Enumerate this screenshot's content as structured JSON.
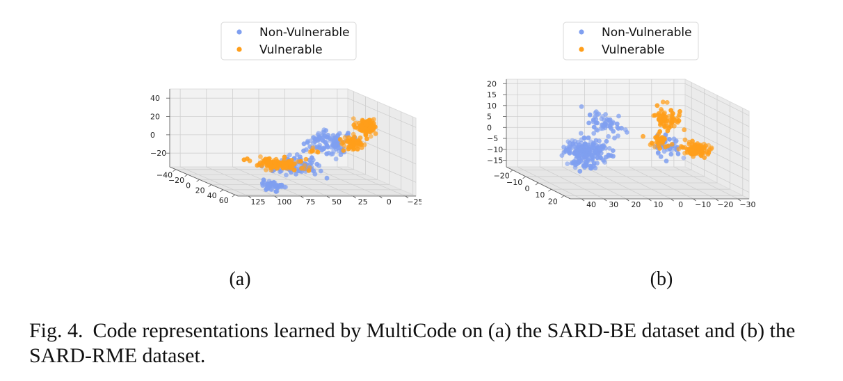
{
  "legend": {
    "items": [
      {
        "label": "Non-Vulnerable",
        "color": "#7f9ff0"
      },
      {
        "label": "Vulnerable",
        "color": "#ff9e1a"
      }
    ]
  },
  "caption": {
    "figure_label": "Fig. 4.",
    "text": "Code representations learned by MultiCode on (a) the SARD-BE dataset and (b) the SARD-RME dataset."
  },
  "chart_data": [
    {
      "type": "scatter",
      "panel_label": "(a)",
      "axes": {
        "x": {
          "ticks": [
            -40,
            -20,
            0,
            20,
            40,
            60
          ],
          "range": [
            -50,
            65
          ]
        },
        "y": {
          "ticks": [
            125,
            100,
            75,
            50,
            25,
            0,
            -25
          ],
          "range": [
            135,
            -35
          ]
        },
        "z": {
          "ticks": [
            -20,
            0,
            20,
            40
          ],
          "range": [
            -35,
            50
          ]
        }
      },
      "grid": true,
      "legend_position": "top-center",
      "series": [
        {
          "name": "Non-Vulnerable",
          "color": "#7f9ff0",
          "clusters": [
            {
              "center": [
                42,
                35,
                15
              ],
              "spread": [
                8,
                18,
                12
              ],
              "count": 110
            },
            {
              "center": [
                55,
                70,
                -5
              ],
              "spread": [
                6,
                20,
                10
              ],
              "count": 90
            },
            {
              "center": [
                60,
                100,
                -25
              ],
              "spread": [
                4,
                10,
                5
              ],
              "count": 50
            }
          ]
        },
        {
          "name": "Vulnerable",
          "color": "#ff9e1a",
          "clusters": [
            {
              "center": [
                25,
                -10,
                30
              ],
              "spread": [
                6,
                8,
                8
              ],
              "count": 110
            },
            {
              "center": [
                35,
                10,
                15
              ],
              "spread": [
                6,
                10,
                8
              ],
              "count": 60
            },
            {
              "center": [
                -25,
                45,
                -25
              ],
              "spread": [
                14,
                20,
                5
              ],
              "count": 110
            },
            {
              "center": [
                10,
                30,
                0
              ],
              "spread": [
                5,
                5,
                4
              ],
              "count": 8
            }
          ]
        }
      ]
    },
    {
      "type": "scatter",
      "panel_label": "(b)",
      "axes": {
        "x": {
          "ticks": [
            -20,
            -10,
            0,
            10,
            20
          ],
          "range": [
            -25,
            25
          ]
        },
        "y": {
          "ticks": [
            40,
            30,
            20,
            10,
            0,
            -10,
            -20,
            -30
          ],
          "range": [
            45,
            -35
          ]
        },
        "z": {
          "ticks": [
            -15,
            -10,
            -5,
            0,
            5,
            10,
            15,
            20
          ],
          "range": [
            -18,
            22
          ]
        }
      },
      "grid": true,
      "legend_position": "top-center",
      "series": [
        {
          "name": "Non-Vulnerable",
          "color": "#7f9ff0",
          "clusters": [
            {
              "center": [
                -5,
                20,
                -5
              ],
              "spread": [
                6,
                8,
                4
              ],
              "count": 190
            },
            {
              "center": [
                -10,
                10,
                5
              ],
              "spread": [
                5,
                8,
                6
              ],
              "count": 60
            },
            {
              "center": [
                5,
                -10,
                0
              ],
              "spread": [
                4,
                6,
                4
              ],
              "count": 40
            },
            {
              "center": [
                0,
                25,
                -10
              ],
              "spread": [
                4,
                4,
                2
              ],
              "count": 25
            }
          ]
        },
        {
          "name": "Vulnerable",
          "color": "#ff9e1a",
          "clusters": [
            {
              "center": [
                10,
                -20,
                0
              ],
              "spread": [
                3,
                5,
                3
              ],
              "count": 90
            },
            {
              "center": [
                5,
                -10,
                12
              ],
              "spread": [
                3,
                5,
                5
              ],
              "count": 70
            },
            {
              "center": [
                8,
                -5,
                3
              ],
              "spread": [
                4,
                4,
                3
              ],
              "count": 30
            }
          ]
        }
      ]
    }
  ]
}
